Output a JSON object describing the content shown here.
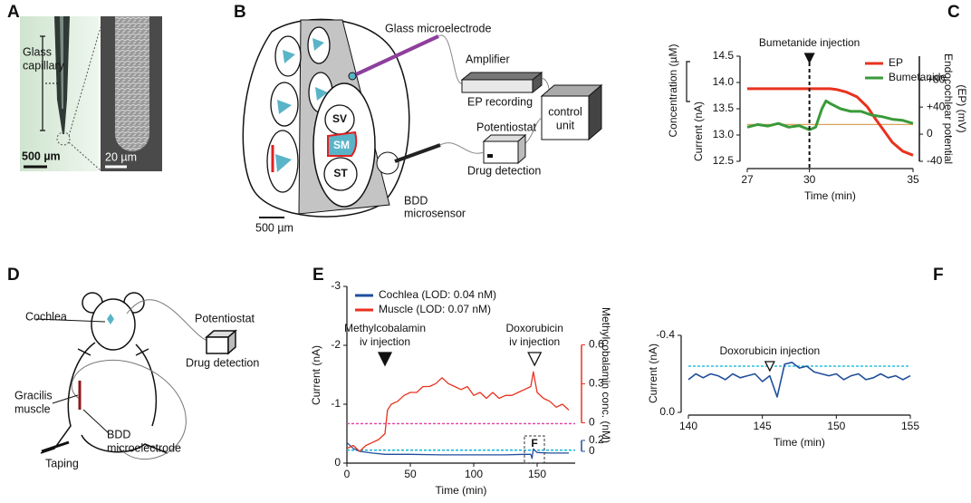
{
  "figure": {
    "A": {
      "letter": "A",
      "capillary_label": [
        "Glass",
        "capillary"
      ],
      "scale_left": "500 µm",
      "scale_right": "20 µm"
    },
    "B": {
      "letter": "B",
      "electrode": "Glass microelectrode",
      "amplifier": "Amplifier",
      "ep": "EP recording",
      "potentiostat": "Potentiostat",
      "drug": "Drug detection",
      "control": [
        "control",
        "unit"
      ],
      "sv": "SV",
      "sm": "SM",
      "st": "ST",
      "bdd": [
        "BDD",
        "microsensor"
      ],
      "scale": "500 µm"
    },
    "D": {
      "letter": "D",
      "cochlea": "Cochlea",
      "potentiostat": "Potentiostat",
      "drug": "Drug detection",
      "muscle": [
        "Gracilis",
        "muscle"
      ],
      "bdd": [
        "BDD",
        "microelectrode"
      ],
      "taping": "Taping"
    }
  },
  "chart_data": [
    {
      "type": "line",
      "panel": "C",
      "xlabel": "Time (min)",
      "ylabel": "Current (nA)",
      "scale_label": "Concentration (µM)",
      "y2label": [
        "Endocochlear potential",
        "(EP) (mV)"
      ],
      "xlim": [
        27,
        35
      ],
      "xticks": [
        27,
        30,
        35
      ],
      "ylim": [
        12.5,
        14.5
      ],
      "yticks": [
        12.5,
        {
          "value": 13,
          "label": "13.0"
        },
        13.5,
        {
          "value": 14,
          "label": "14.0"
        },
        14.5
      ],
      "y2lim": [
        -40,
        115
      ],
      "y2ticks": [
        -40,
        0,
        {
          "value": 40,
          "label": "+40"
        },
        {
          "value": 80,
          "label": "+80"
        }
      ],
      "legend": "upper right",
      "hlines": [
        {
          "y": 13.2,
          "color": "#d9a35b",
          "style": "solid"
        }
      ],
      "annotations": [
        {
          "text": [
            "Bumetanide injection"
          ],
          "x": 30,
          "marker": "filled",
          "vline": true
        }
      ],
      "series": [
        {
          "name": "EP",
          "color": "#e8321e",
          "axis": "y2",
          "x": [
            27,
            28,
            29,
            30,
            31,
            31.3,
            31.8,
            32.3,
            32.8,
            33.2,
            33.6,
            34,
            34.5,
            35
          ],
          "values": [
            67,
            67,
            67,
            67,
            67,
            66,
            62,
            55,
            40,
            22,
            5,
            -12,
            -25,
            -31
          ]
        },
        {
          "name": "Bumetanide",
          "color": "#3a9a3a",
          "x": [
            27,
            27.5,
            28,
            28.5,
            29,
            29.5,
            30,
            30.3,
            30.6,
            30.8,
            31,
            31.5,
            32,
            32.5,
            33,
            33.5,
            34,
            34.5,
            35
          ],
          "values": [
            13.15,
            13.2,
            13.17,
            13.22,
            13.15,
            13.18,
            13.1,
            13.15,
            13.5,
            13.65,
            13.6,
            13.5,
            13.45,
            13.45,
            13.38,
            13.35,
            13.3,
            13.28,
            13.22
          ]
        }
      ]
    },
    {
      "type": "line",
      "panel": "E",
      "xlabel": "Time (min)",
      "ylabel": "Current (nA)",
      "y2label": [
        "Methylcobalamin conc. (nM)"
      ],
      "xlim": [
        0,
        180
      ],
      "xticks": [
        0,
        50,
        100,
        150
      ],
      "ylim": [
        0,
        -3
      ],
      "yticks": [
        0,
        -1,
        -2,
        -3
      ],
      "y2lim": [
        -0.31,
        1.05
      ],
      "y2ticks": [
        0,
        0.3,
        0.6
      ],
      "y2color": "#e8321e",
      "y3lim": [
        -0.217,
        3.03
      ],
      "y3ticks": [
        0,
        0.2
      ],
      "y3color": "#1f4e9c",
      "legend": "upper left",
      "inset_label": "F",
      "hlines": [
        {
          "y": -0.67,
          "color": "#e040a0",
          "style": "dashed"
        },
        {
          "y": -0.22,
          "color": "#00b4d8",
          "style": "dashed"
        }
      ],
      "annotations": [
        {
          "text": [
            "Methylcobalamin",
            "iv injection"
          ],
          "x": 30,
          "marker": "filled"
        },
        {
          "text": [
            "Doxorubicin",
            "iv injection"
          ],
          "x": 148,
          "marker": "open"
        }
      ],
      "series": [
        {
          "name": "Cochlea (LOD: 0.04 nM)",
          "color": "#1f4e9c",
          "x": [
            0,
            5,
            10,
            20,
            30,
            50,
            75,
            100,
            125,
            140,
            145,
            146,
            147,
            150,
            160,
            175
          ],
          "values": [
            -0.35,
            -0.25,
            -0.2,
            -0.17,
            -0.15,
            -0.15,
            -0.14,
            -0.14,
            -0.14,
            -0.15,
            -0.15,
            -0.08,
            -0.24,
            -0.18,
            -0.17,
            -0.17
          ]
        },
        {
          "name": "Muscle (LOD: 0.07 nM)",
          "color": "#e8321e",
          "x": [
            0,
            5,
            10,
            15,
            20,
            25,
            30,
            32,
            35,
            40,
            45,
            50,
            55,
            60,
            65,
            70,
            75,
            80,
            85,
            90,
            95,
            100,
            105,
            110,
            115,
            120,
            125,
            130,
            135,
            140,
            145,
            147,
            150,
            155,
            160,
            165,
            170,
            175
          ],
          "values": [
            -0.25,
            -0.3,
            -0.2,
            -0.3,
            -0.35,
            -0.4,
            -0.5,
            -0.9,
            -1.0,
            -1.05,
            -1.15,
            -1.2,
            -1.2,
            -1.3,
            -1.3,
            -1.35,
            -1.45,
            -1.35,
            -1.3,
            -1.25,
            -1.3,
            -1.15,
            -1.2,
            -1.1,
            -1.2,
            -1.1,
            -1.15,
            -1.15,
            -1.2,
            -1.25,
            -1.3,
            -1.55,
            -1.2,
            -1.1,
            -1.05,
            -0.95,
            -1.0,
            -0.9
          ]
        }
      ]
    },
    {
      "type": "line",
      "panel": "F",
      "xlabel": "Time (min)",
      "ylabel": "Current (nA)",
      "xlim": [
        140,
        155
      ],
      "xticks": [
        140,
        145,
        150,
        155
      ],
      "ylim": [
        0,
        -0.4
      ],
      "yticks": [
        {
          "value": 0,
          "label": "0.0"
        },
        -0.4
      ],
      "hlines": [
        {
          "y": -0.24,
          "color": "#00b4d8",
          "style": "dashed"
        }
      ],
      "annotations": [
        {
          "text": [
            "Doxorubicin injection"
          ],
          "x": 145.5,
          "marker": "open"
        }
      ],
      "series": [
        {
          "color": "#1f4e9c",
          "x": [
            140,
            140.5,
            141,
            141.5,
            142,
            142.5,
            143,
            143.5,
            144,
            144.5,
            145,
            145.5,
            146,
            146.5,
            147,
            147.5,
            148,
            148.5,
            149,
            149.5,
            150,
            150.5,
            151,
            151.5,
            152,
            152.5,
            153,
            153.5,
            154,
            154.5,
            155
          ],
          "values": [
            -0.17,
            -0.2,
            -0.18,
            -0.2,
            -0.19,
            -0.17,
            -0.2,
            -0.18,
            -0.19,
            -0.2,
            -0.16,
            -0.19,
            -0.08,
            -0.25,
            -0.26,
            -0.23,
            -0.24,
            -0.21,
            -0.2,
            -0.19,
            -0.2,
            -0.17,
            -0.19,
            -0.2,
            -0.17,
            -0.18,
            -0.2,
            -0.18,
            -0.19,
            -0.17,
            -0.19
          ]
        }
      ]
    }
  ]
}
